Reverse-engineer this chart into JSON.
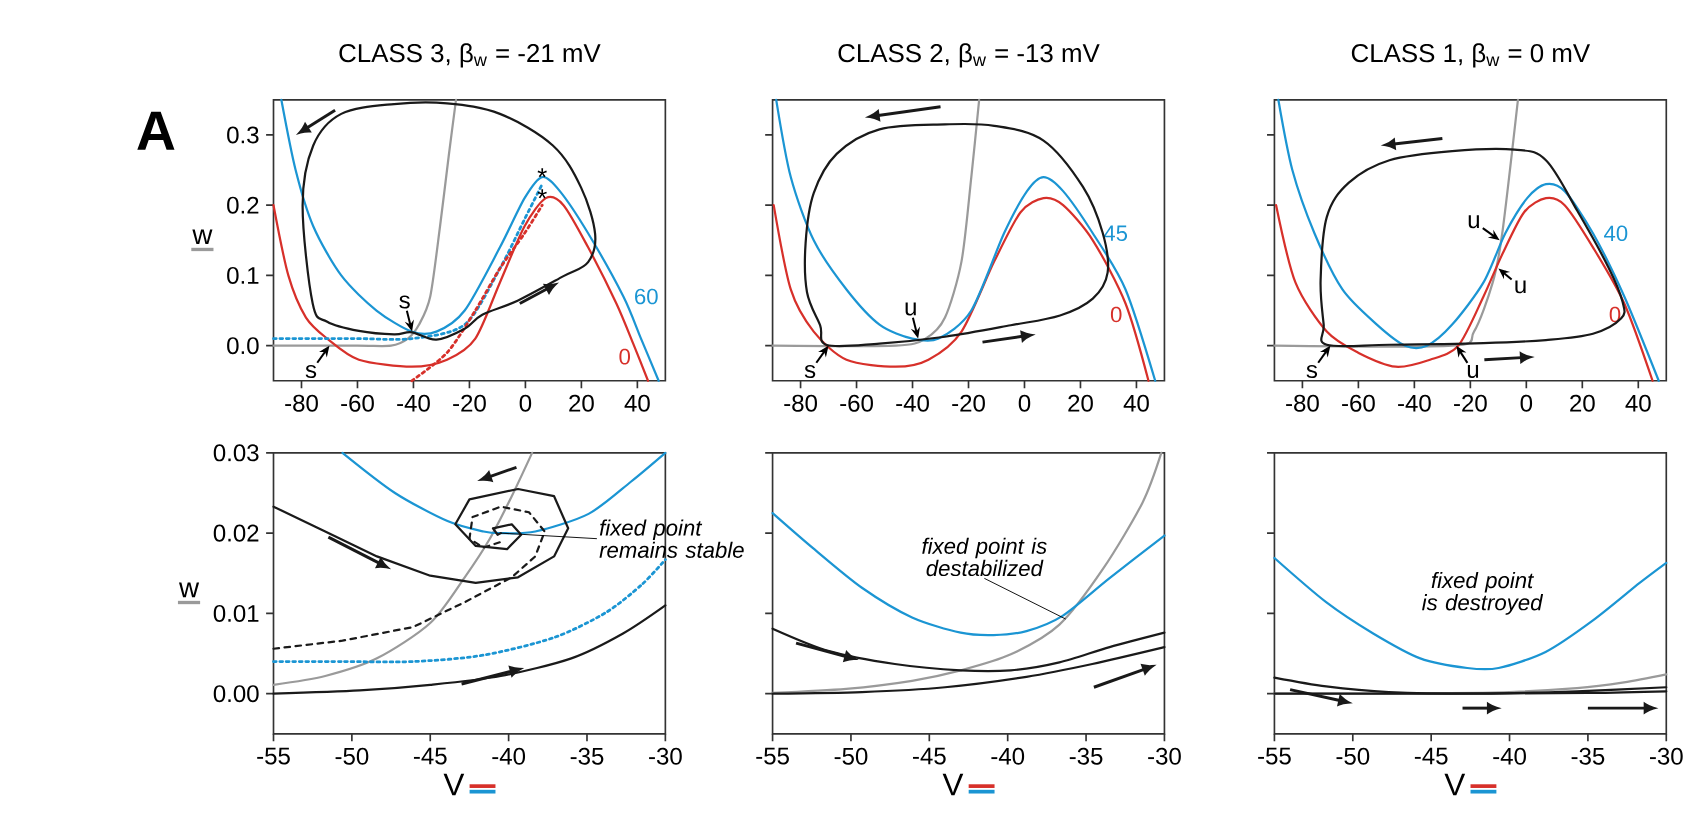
{
  "chart_data": [
    {
      "type": "line",
      "title": "CLASS 3, β$_{w}$ = -21 mV",
      "ylabel": "w",
      "xlim": [
        -90,
        50
      ],
      "ylim": [
        -0.05,
        0.35
      ],
      "xticks": [
        -80,
        -60,
        -40,
        -20,
        0,
        20,
        40
      ],
      "yticks": [
        {
          "value": 0,
          "label": "0.0"
        },
        {
          "value": 0.1,
          "label": "0.1"
        },
        {
          "value": 0.2,
          "label": "0.2"
        },
        {
          "value": 0.3,
          "label": "0.3"
        }
      ],
      "series": [
        {
          "color": "#9a9a9a",
          "x": [
            -90,
            -60,
            -48,
            -42,
            -38,
            -34,
            -30.5,
            -27.4,
            -24.8
          ],
          "values": [
            0,
            0,
            0,
            0.01,
            0.03,
            0.07,
            0.17,
            0.27,
            0.35
          ]
        },
        {
          "name": "0",
          "color": "#d7302a",
          "x": [
            -90,
            -84.7,
            -78.4,
            -70.8,
            -59.5,
            -40.6,
            -28,
            -17.9,
            -9.1,
            -0.3,
            7.3,
            13.6,
            22.4,
            32.5,
            38.8,
            43.8
          ],
          "values": [
            0.2,
            0.1,
            0.04,
            0.01,
            -0.02,
            -0.03,
            -0.02,
            0.01,
            0.09,
            0.17,
            0.21,
            0.2,
            0.14,
            0.06,
            0,
            -0.05
          ]
        },
        {
          "name": "60",
          "color": "#1b95d3",
          "x": [
            -87.2,
            -82.1,
            -75.8,
            -65.8,
            -53.2,
            -40.6,
            -31.8,
            -21.7,
            -9.1,
            -0.3,
            6,
            12.3,
            22.4,
            35,
            41.3,
            47.6
          ],
          "values": [
            0.35,
            0.25,
            0.17,
            0.1,
            0.05,
            0.02,
            0.02,
            0.05,
            0.14,
            0.21,
            0.24,
            0.22,
            0.16,
            0.07,
            0.01,
            -0.05
          ]
        },
        {
          "color": "#1b95d3",
          "line_style": "dotted",
          "x": [
            -90,
            -60,
            -40.6,
            -21.7,
            -9.1,
            -0.3,
            6
          ],
          "values": [
            0.01,
            0.01,
            0.01,
            0.03,
            0.11,
            0.18,
            0.23
          ]
        },
        {
          "color": "#d7302a",
          "line_style": "dotted",
          "x": [
            -40.6,
            -28,
            -17.9,
            -9.1,
            -0.3,
            6
          ],
          "values": [
            -0.05,
            -0.01,
            0.05,
            0.11,
            0.16,
            0.2
          ]
        }
      ],
      "annotations": [
        "A",
        {
          "text": "s",
          "x": -40.5,
          "y": 0.02
        },
        {
          "text": "s",
          "x": -70,
          "y": 0
        },
        {
          "text": "*",
          "x": 6,
          "y": 0.24
        },
        {
          "text": "*",
          "x": 6,
          "y": 0.21
        }
      ]
    },
    {
      "type": "line",
      "title": "CLASS 2, β$_{w}$ = -13 mV",
      "xlim": [
        -90,
        50
      ],
      "ylim": [
        -0.05,
        0.35
      ],
      "tick_labels": "x",
      "xticks": [
        -80,
        -60,
        -40,
        -20,
        0,
        20,
        40
      ],
      "yticks": [
        {
          "value": 0,
          "label": null
        },
        {
          "value": 0.1,
          "label": null
        },
        {
          "value": 0.2,
          "label": null
        },
        {
          "value": 0.3,
          "label": null
        }
      ],
      "series": [
        {
          "color": "#9a9a9a",
          "x": [
            -90,
            -46,
            -35.4,
            -28.4,
            -22.5,
            -19,
            -16.2
          ],
          "values": [
            0,
            0,
            0.01,
            0.04,
            0.12,
            0.24,
            0.35
          ]
        },
        {
          "name": "0",
          "color": "#d7302a",
          "x": [
            -89.6,
            -83.5,
            -75.3,
            -63.6,
            -46,
            -34.3,
            -22.5,
            -10.8,
            -1.4,
            6.8,
            13.8,
            24.4,
            36.1,
            44.3
          ],
          "values": [
            0.2,
            0.08,
            0.02,
            -0.02,
            -0.03,
            -0.02,
            0.02,
            0.12,
            0.19,
            0.21,
            0.2,
            0.15,
            0.06,
            -0.05
          ]
        },
        {
          "name": "45",
          "color": "#1b95d3",
          "x": [
            -88.7,
            -83.5,
            -75.3,
            -63.6,
            -51.8,
            -40.1,
            -30.7,
            -19,
            -7.3,
            0.9,
            6.8,
            13.8,
            24.4,
            36.1,
            46.7
          ],
          "values": [
            0.35,
            0.24,
            0.15,
            0.08,
            0.03,
            0.01,
            0.01,
            0.05,
            0.16,
            0.22,
            0.24,
            0.22,
            0.16,
            0.08,
            -0.05
          ]
        }
      ],
      "annotations": [
        {
          "text": "u",
          "x": -38,
          "y": 0.01
        },
        {
          "text": "s",
          "x": -70,
          "y": 0
        }
      ]
    },
    {
      "type": "line",
      "title": "CLASS 1, β$_{w}$ = 0 mV",
      "xlim": [
        -90,
        50
      ],
      "ylim": [
        -0.05,
        0.35
      ],
      "tick_labels": "x",
      "xticks": [
        -80,
        -60,
        -40,
        -20,
        0,
        20,
        40
      ],
      "yticks": [
        {
          "value": 0,
          "label": null
        },
        {
          "value": 0.1,
          "label": null
        },
        {
          "value": 0.2,
          "label": null
        },
        {
          "value": 0.3,
          "label": null
        }
      ],
      "series": [
        {
          "color": "#9a9a9a",
          "x": [
            -90,
            -26.5,
            -18.7,
            -12,
            -8.6,
            -3
          ],
          "values": [
            0,
            0,
            0.02,
            0.09,
            0.16,
            0.35
          ]
        },
        {
          "name": "0",
          "color": "#d7302a",
          "x": [
            -89.4,
            -82.5,
            -71.3,
            -60.1,
            -46.7,
            -34.4,
            -24.3,
            -15.3,
            -8.6,
            -0.8,
            7,
            13.7,
            23.8,
            35,
            45.1
          ],
          "values": [
            0.2,
            0.09,
            0.02,
            -0.01,
            -0.03,
            -0.02,
            0,
            0.07,
            0.13,
            0.19,
            0.21,
            0.2,
            0.14,
            0.06,
            -0.05
          ]
        },
        {
          "name": "40",
          "color": "#1b95d3",
          "x": [
            -88.6,
            -83.6,
            -75.7,
            -65.7,
            -53.4,
            -43.3,
            -35.5,
            -26.5,
            -15.3,
            -7.5,
            0.3,
            7,
            13.7,
            23.8,
            35,
            47.3
          ],
          "values": [
            0.35,
            0.25,
            0.16,
            0.08,
            0.03,
            0,
            0,
            0.03,
            0.09,
            0.16,
            0.21,
            0.23,
            0.22,
            0.16,
            0.07,
            -0.05
          ]
        }
      ],
      "annotations": [
        {
          "text": "u",
          "x": -9.5,
          "y": 0.15
        },
        {
          "text": "u",
          "x": -10,
          "y": 0.11
        },
        {
          "text": "u",
          "x": -25,
          "y": 0
        },
        {
          "text": "s",
          "x": -70,
          "y": 0
        }
      ]
    },
    {
      "type": "line",
      "xlabel": "V",
      "ylabel": "w",
      "xlim": [
        -55,
        -30
      ],
      "ylim": [
        -0.005,
        0.03
      ],
      "xticks": [
        -55,
        -50,
        -45,
        -40,
        -35,
        -30
      ],
      "yticks": [
        {
          "value": 0,
          "label": "0.00"
        },
        {
          "value": 0.01,
          "label": "0.01"
        },
        {
          "value": 0.02,
          "label": "0.02"
        },
        {
          "value": 0.03,
          "label": "0.03"
        }
      ],
      "series": [
        {
          "color": "#9a9a9a",
          "x": [
            -55,
            -51.7,
            -48.4,
            -45,
            -42.8,
            -41.2,
            -39.8,
            -38.5
          ],
          "values": [
            0.0011,
            0.0022,
            0.0044,
            0.0088,
            0.0145,
            0.0193,
            0.0246,
            0.03
          ]
        },
        {
          "color": "#1b95d3",
          "x": [
            -50.6,
            -47.25,
            -43.9,
            -41.6,
            -40.5,
            -38.3,
            -34.9,
            -32.2,
            -30
          ],
          "values": [
            0.03,
            0.025,
            0.0215,
            0.0202,
            0.02,
            0.0202,
            0.0224,
            0.0264,
            0.03
          ]
        },
        {
          "color": "#1b95d3",
          "line_style": "dotted",
          "x": [
            -55,
            -50.6,
            -46.1,
            -41.6,
            -37.1,
            -33.8,
            -31.5,
            -30
          ],
          "values": [
            0.004,
            0.004,
            0.004,
            0.0048,
            0.007,
            0.0101,
            0.0136,
            0.0167
          ]
        },
        {
          "color": "#1a1a1a",
          "x": [
            -55,
            -51.7,
            -48.4,
            -45,
            -42.1,
            -39.4,
            -37.1,
            -36.2,
            -37.1,
            -39.4,
            -42.5,
            -43.4,
            -42.1,
            -40.1,
            -39.2,
            -39.8,
            -41,
            -40.7,
            -40.5
          ],
          "values": [
            0.0233,
            0.0202,
            0.0171,
            0.0147,
            0.0138,
            0.0145,
            0.0171,
            0.0206,
            0.0246,
            0.0255,
            0.0242,
            0.0211,
            0.0184,
            0.018,
            0.0198,
            0.0211,
            0.0206,
            0.0198,
            0.02
          ]
        },
        {
          "color": "#1a1a1a",
          "line_style": "dashed",
          "x": [
            -55,
            -50.6,
            -46.1,
            -42.8,
            -39.8,
            -38.3,
            -37.7,
            -38.7,
            -40.5,
            -42.3,
            -42.5,
            -41.6,
            -40.5
          ],
          "values": [
            0.0056,
            0.0066,
            0.0083,
            0.0114,
            0.0145,
            0.0171,
            0.0202,
            0.0226,
            0.0233,
            0.022,
            0.0193,
            0.0182,
            0.0189
          ]
        },
        {
          "color": "#1a1a1a",
          "x": [
            -55,
            -49.5,
            -45,
            -40.5,
            -36,
            -32.7,
            -30
          ],
          "values": [
            0,
            0.0004,
            0.0011,
            0.0022,
            0.0044,
            0.0075,
            0.011
          ]
        }
      ],
      "annotations": [
        {
          "text": "fixed point remains stable",
          "x": -40.5,
          "y": 0.02
        }
      ]
    },
    {
      "type": "line",
      "xlabel": "V",
      "xlim": [
        -55,
        -30
      ],
      "ylim": [
        -0.005,
        0.03
      ],
      "tick_labels": "x",
      "xticks": [
        -55,
        -50,
        -45,
        -40,
        -35,
        -30
      ],
      "yticks": [
        {
          "value": 0,
          "label": null
        },
        {
          "value": 0.01,
          "label": null
        },
        {
          "value": 0.02,
          "label": null
        },
        {
          "value": 0.03,
          "label": null
        }
      ],
      "series": [
        {
          "color": "#9a9a9a",
          "x": [
            -55,
            -50.3,
            -46.1,
            -43,
            -39.8,
            -36.7,
            -33.9,
            -31.4,
            -30.2
          ],
          "values": [
            0.0001,
            0.0006,
            0.0016,
            0.0029,
            0.0049,
            0.0086,
            0.0156,
            0.0238,
            0.03
          ]
        },
        {
          "color": "#1b95d3",
          "x": [
            -55,
            -52.4,
            -49.3,
            -46.1,
            -43,
            -40.9,
            -38.8,
            -36.5,
            -33.5,
            -30
          ],
          "values": [
            0.0225,
            0.0181,
            0.0132,
            0.0095,
            0.0076,
            0.0073,
            0.0078,
            0.0097,
            0.0144,
            0.0197
          ]
        },
        {
          "color": "#1a1a1a",
          "x": [
            -55,
            -51.4,
            -47.2,
            -43,
            -39.8,
            -36.7,
            -33.5,
            -30
          ],
          "values": [
            0.0081,
            0.0053,
            0.0037,
            0.0029,
            0.0029,
            0.0039,
            0.0058,
            0.0076
          ]
        },
        {
          "color": "#1a1a1a",
          "x": [
            -55,
            -49.3,
            -44,
            -38.8,
            -34.6,
            -30
          ],
          "values": [
            0,
            0.0002,
            0.0008,
            0.0021,
            0.0037,
            0.0058
          ]
        }
      ],
      "annotations": [
        {
          "text": "fixed point is destabilized",
          "x": -36.3,
          "y": 0.0093
        }
      ]
    },
    {
      "type": "line",
      "xlabel": "V",
      "xlim": [
        -55,
        -30
      ],
      "ylim": [
        -0.005,
        0.03
      ],
      "tick_labels": "x",
      "xticks": [
        -55,
        -50,
        -45,
        -40,
        -35,
        -30
      ],
      "yticks": [
        {
          "value": 0,
          "label": null
        },
        {
          "value": 0.01,
          "label": null
        },
        {
          "value": 0.02,
          "label": null
        },
        {
          "value": 0.03,
          "label": null
        }
      ],
      "series": [
        {
          "color": "#9a9a9a",
          "x": [
            -55,
            -41.7,
            -35.7,
            -32.7,
            -30
          ],
          "values": [
            0,
            0.0001,
            0.0007,
            0.0014,
            0.0024
          ]
        },
        {
          "color": "#1b95d3",
          "x": [
            -55,
            -51.7,
            -48.7,
            -45.7,
            -42.7,
            -40.7,
            -37.7,
            -34.7,
            -31.7,
            -30
          ],
          "values": [
            0.0169,
            0.0114,
            0.0075,
            0.0044,
            0.0032,
            0.0032,
            0.0052,
            0.0091,
            0.0138,
            0.0163
          ]
        },
        {
          "color": "#1a1a1a",
          "x": [
            -55,
            -51.7,
            -47.7,
            -41.7,
            -35.7,
            -30
          ],
          "values": [
            0.002,
            0.0009,
            0.0002,
            0,
            0.0003,
            0.0008
          ]
        },
        {
          "color": "#1a1a1a",
          "x": [
            -55,
            -45,
            -35,
            -30
          ],
          "values": [
            0,
            0,
            0.0001,
            0.0003
          ]
        }
      ],
      "annotations": [
        "fixed point is destroyed"
      ]
    }
  ]
}
